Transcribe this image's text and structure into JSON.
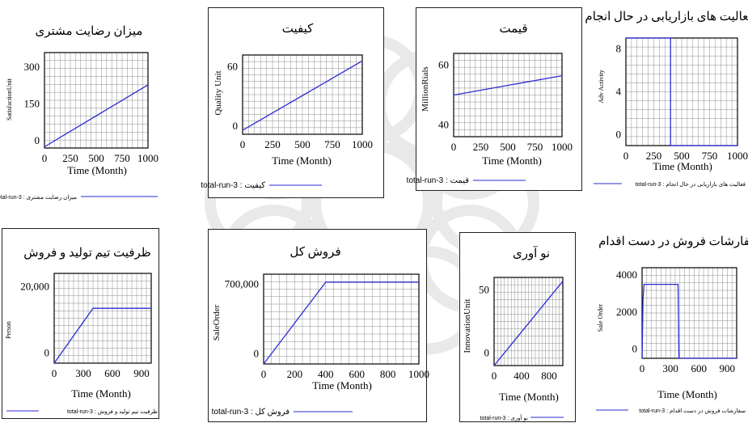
{
  "colors": {
    "series": "#2b2bd6",
    "grid": "#8c8c8c",
    "frame": "#000000",
    "background": "#ffffff",
    "watermark": "#d8d8d8"
  },
  "chart_data": [
    {
      "type": "line",
      "title": "میزان رضایت مشتری",
      "xlabel": "Time (Month)",
      "ylabel": "SatisfactionUnit",
      "xlim": [
        0,
        1000
      ],
      "ylim": [
        -30,
        360
      ],
      "xticks": [
        "0",
        "250",
        "500",
        "750",
        "1000"
      ],
      "xtick_values": [
        0,
        250,
        500,
        750,
        1000
      ],
      "yticks": [
        "0",
        "150",
        "300"
      ],
      "ytick_values": [
        0,
        150,
        300
      ],
      "grid": true,
      "series": [
        {
          "name": "total-run-3 : میزان رضایت مشتری",
          "x": [
            0,
            1000
          ],
          "y": [
            -25,
            228
          ]
        }
      ]
    },
    {
      "type": "line",
      "title": "کیفیت",
      "xlabel": "Time (Month)",
      "ylabel": "Quality Unit",
      "xlim": [
        0,
        1000
      ],
      "ylim": [
        -8,
        72
      ],
      "xticks": [
        "0",
        "250",
        "500",
        "750",
        "1000"
      ],
      "xtick_values": [
        0,
        250,
        500,
        750,
        1000
      ],
      "yticks": [
        "0",
        "60"
      ],
      "ytick_values": [
        0,
        60
      ],
      "grid": true,
      "series": [
        {
          "name": "total-run-3 : کیفیت",
          "x": [
            0,
            1000
          ],
          "y": [
            -4,
            66
          ]
        }
      ]
    },
    {
      "type": "line",
      "title": "قیمت",
      "xlabel": "Time (Month)",
      "ylabel": "MillionRials",
      "xlim": [
        0,
        1000
      ],
      "ylim": [
        36,
        64
      ],
      "xticks": [
        "0",
        "250",
        "500",
        "750",
        "1000"
      ],
      "xtick_values": [
        0,
        250,
        500,
        750,
        1000
      ],
      "yticks": [
        "40",
        "60"
      ],
      "ytick_values": [
        40,
        60
      ],
      "grid": true,
      "series": [
        {
          "name": "total-run-3 : قیمت",
          "x": [
            0,
            1000
          ],
          "y": [
            50,
            56.5
          ]
        }
      ]
    },
    {
      "type": "line",
      "title": "فعالیت های بازاریابی در حال انجام",
      "xlabel": "Time (Month)",
      "ylabel": "Adv Activity",
      "xlim": [
        0,
        1000
      ],
      "ylim": [
        -1,
        9
      ],
      "xticks": [
        "0",
        "250",
        "500",
        "750",
        "1000"
      ],
      "xtick_values": [
        0,
        250,
        500,
        750,
        1000
      ],
      "yticks": [
        "0",
        "4",
        "8"
      ],
      "ytick_values": [
        0,
        4,
        8
      ],
      "grid": true,
      "series": [
        {
          "name": "total-run-3 : فعالیت های بازاریابی در حال انجام",
          "x": [
            0,
            0,
            400,
            400,
            1000
          ],
          "y": [
            9,
            9,
            9,
            -1,
            -1
          ]
        }
      ]
    },
    {
      "type": "line",
      "title": "ظرفیت تیم تولید و فروش",
      "xlabel": "Time (Month)",
      "ylabel": "Person",
      "xlim": [
        0,
        1000
      ],
      "ylim": [
        -3000,
        24000
      ],
      "xticks": [
        "0",
        "300",
        "600",
        "900"
      ],
      "xtick_values": [
        0,
        300,
        600,
        900
      ],
      "yticks": [
        "0",
        "20,000"
      ],
      "ytick_values": [
        0,
        20000
      ],
      "grid": true,
      "series": [
        {
          "name": "total-run-3 : ظرفیت تیم تولید و فروش",
          "x": [
            0,
            400,
            1000
          ],
          "y": [
            -3000,
            13500,
            13500
          ]
        }
      ]
    },
    {
      "type": "line",
      "title": "فروش کل",
      "xlabel": "Time (Month)",
      "ylabel": "SaleOrder",
      "xlim": [
        0,
        1000
      ],
      "ylim": [
        -100000,
        800000
      ],
      "xticks": [
        "0",
        "200",
        "400",
        "600",
        "800",
        "1000"
      ],
      "xtick_values": [
        0,
        200,
        400,
        600,
        800,
        1000
      ],
      "yticks": [
        "0",
        "700,000"
      ],
      "ytick_values": [
        0,
        700000
      ],
      "grid": true,
      "series": [
        {
          "name": "total-run-3 : فروش کل",
          "x": [
            0,
            400,
            1000
          ],
          "y": [
            -100000,
            720000,
            720000
          ]
        }
      ]
    },
    {
      "type": "line",
      "title": "نو آوری",
      "xlabel": "Time (Month)",
      "ylabel": "InnovationUnit",
      "xlim": [
        0,
        1000
      ],
      "ylim": [
        -10,
        60
      ],
      "xticks": [
        "0",
        "400",
        "800"
      ],
      "xtick_values": [
        0,
        400,
        800
      ],
      "yticks": [
        "0",
        "50"
      ],
      "ytick_values": [
        0,
        50
      ],
      "grid": true,
      "series": [
        {
          "name": "total-run-3 : نو آوری",
          "x": [
            0,
            1000
          ],
          "y": [
            -10,
            57
          ]
        }
      ]
    },
    {
      "type": "line",
      "title": "سفارشات فروش در دست اقدام",
      "xlabel": "Time (Month)",
      "ylabel": "Sale Order",
      "xlim": [
        0,
        1000
      ],
      "ylim": [
        -500,
        4400
      ],
      "xticks": [
        "0",
        "300",
        "600",
        "900"
      ],
      "xtick_values": [
        0,
        300,
        600,
        900
      ],
      "yticks": [
        "0",
        "2000",
        "4000"
      ],
      "ytick_values": [
        0,
        2000,
        4000
      ],
      "grid": true,
      "series": [
        {
          "name": "total-run-3 : سفارشات فروش در دست اقدام",
          "x": [
            0,
            10,
            20,
            380,
            390,
            1000
          ],
          "y": [
            -500,
            2700,
            3500,
            3500,
            -500,
            -500
          ]
        }
      ]
    }
  ]
}
